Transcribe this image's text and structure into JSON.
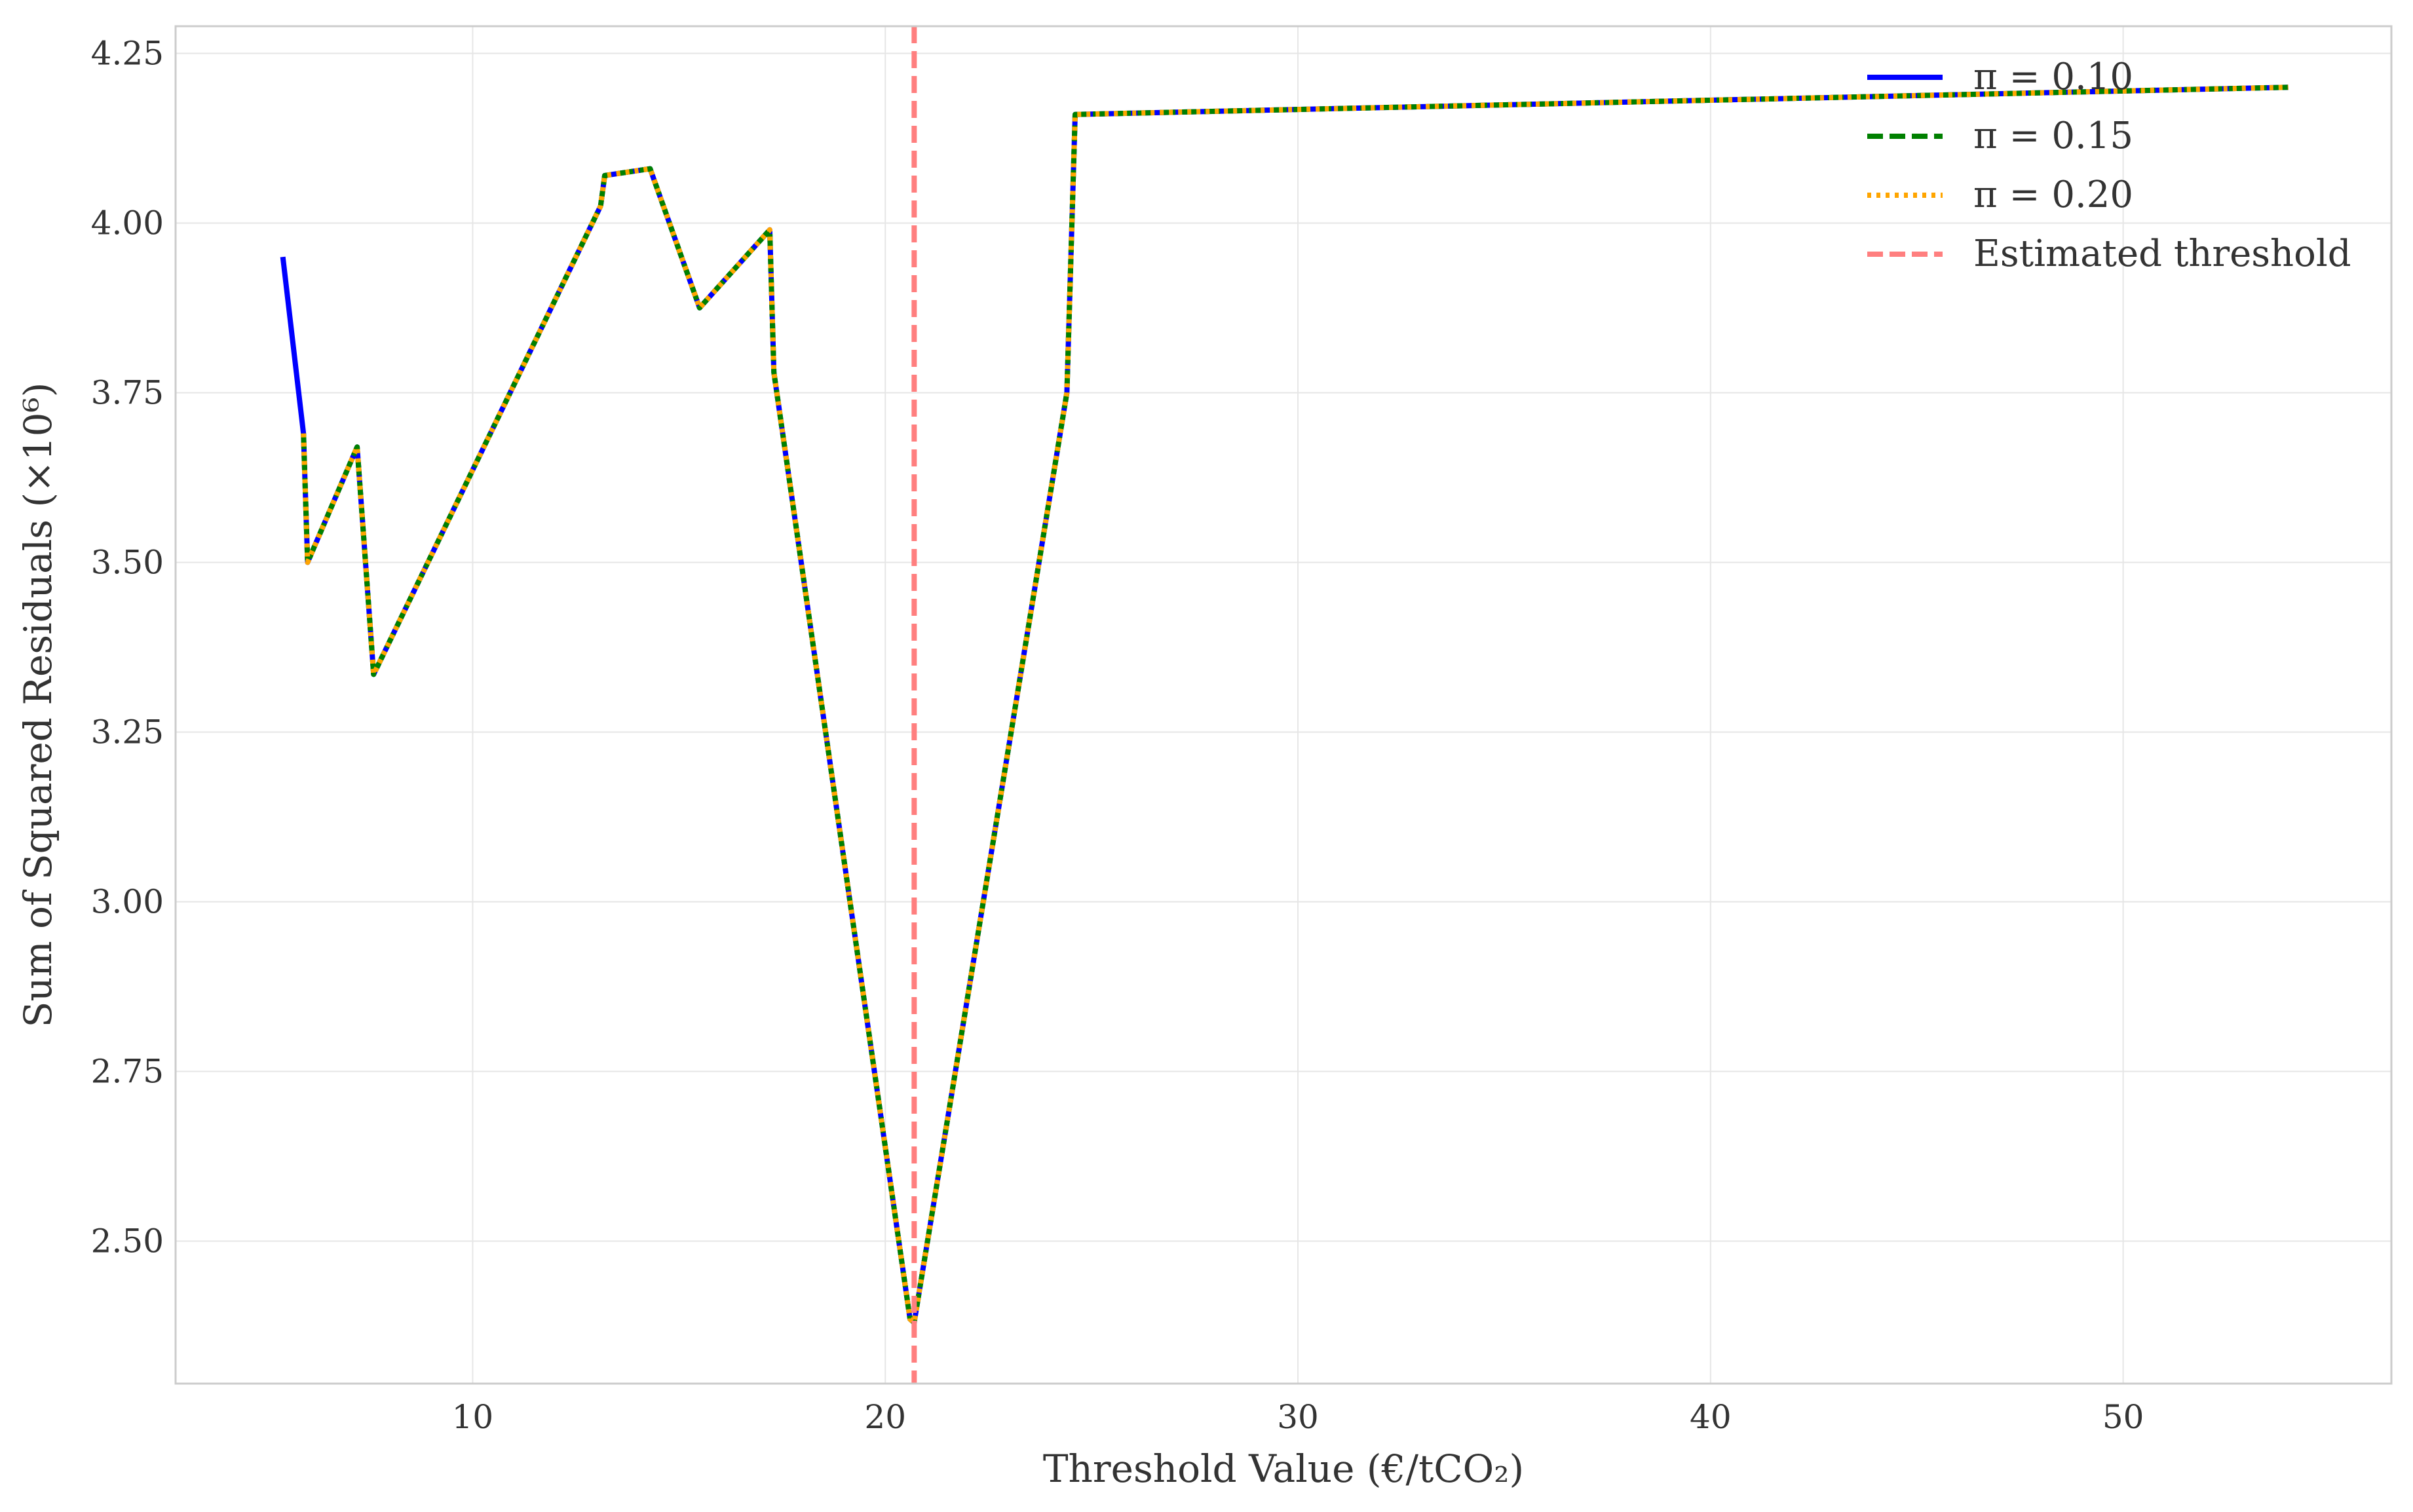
{
  "chart_data": {
    "type": "line",
    "title": "",
    "xlabel": "Threshold Value (€/tCO₂)",
    "ylabel": "Sum of Squared Residuals (×10⁶)",
    "xlim": [
      2.8,
      56.5
    ],
    "ylim": [
      2.29,
      4.29
    ],
    "xticks": [
      10,
      20,
      30,
      40,
      50
    ],
    "yticks": [
      2.5,
      2.75,
      3.0,
      3.25,
      3.5,
      3.75,
      4.0,
      4.25
    ],
    "grid": true,
    "legend_position": "top-right",
    "series": [
      {
        "name": "π = 0.10",
        "color": "#0000ff",
        "style": "solid",
        "x": [
          5.4,
          5.9,
          6.0,
          7.2,
          7.6,
          13.1,
          13.2,
          14.3,
          15.5,
          17.2,
          17.3,
          20.6,
          20.7,
          24.4,
          24.6,
          54.0
        ],
        "y": [
          3.95,
          3.69,
          3.5,
          3.67,
          3.335,
          4.025,
          4.07,
          4.08,
          3.875,
          3.99,
          3.78,
          2.385,
          2.38,
          3.75,
          4.16,
          4.2
        ]
      },
      {
        "name": "π = 0.15",
        "color": "#008000",
        "style": "dashed",
        "x": [
          5.9,
          6.0,
          7.2,
          7.6,
          13.1,
          13.2,
          14.3,
          15.5,
          17.2,
          17.3,
          20.6,
          20.7,
          24.4,
          24.6,
          54.0
        ],
        "y": [
          3.69,
          3.5,
          3.67,
          3.335,
          4.025,
          4.07,
          4.08,
          3.875,
          3.99,
          3.78,
          2.385,
          2.38,
          3.75,
          4.16,
          4.2
        ]
      },
      {
        "name": "π = 0.20",
        "color": "#ffa500",
        "style": "dotted",
        "x": [
          5.9,
          6.0,
          7.2,
          7.6,
          13.1,
          13.2,
          14.3,
          15.5,
          17.2,
          17.3,
          20.6,
          20.7,
          24.4,
          24.6,
          54.0
        ],
        "y": [
          3.69,
          3.5,
          3.67,
          3.335,
          4.025,
          4.07,
          4.08,
          3.875,
          3.99,
          3.78,
          2.385,
          2.38,
          3.75,
          4.16,
          4.2
        ]
      }
    ],
    "threshold": {
      "name": "Estimated threshold",
      "x": 20.7,
      "color": "#ff7f7f",
      "style": "dashed"
    }
  }
}
